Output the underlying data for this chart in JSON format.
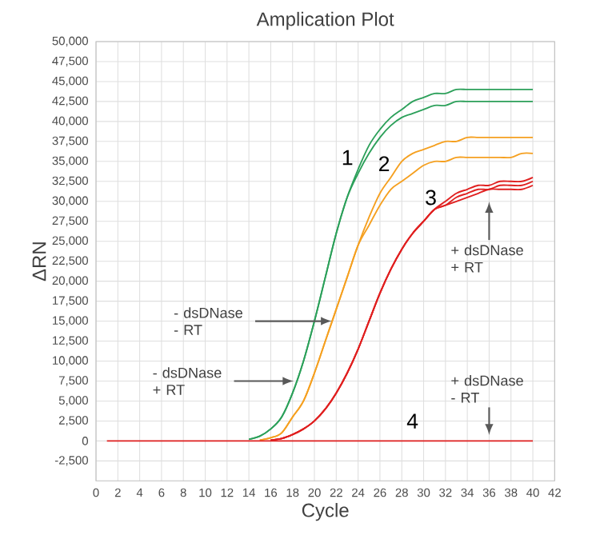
{
  "chart_data": {
    "type": "line",
    "title": "Amplication Plot",
    "xlabel": "Cycle",
    "ylabel": "ΔRN",
    "x": [
      1,
      2,
      3,
      4,
      5,
      6,
      7,
      8,
      9,
      10,
      11,
      12,
      13,
      14,
      15,
      16,
      17,
      18,
      19,
      20,
      21,
      22,
      23,
      24,
      25,
      26,
      27,
      28,
      29,
      30,
      31,
      32,
      33,
      34,
      35,
      36,
      37,
      38,
      39,
      40
    ],
    "series": [
      {
        "color": "#2ca05a",
        "values": [
          null,
          null,
          null,
          null,
          null,
          null,
          null,
          null,
          null,
          null,
          null,
          null,
          null,
          200,
          600,
          1500,
          3000,
          6000,
          10000,
          15000,
          20500,
          26000,
          30500,
          34000,
          37000,
          39000,
          40500,
          41500,
          42500,
          43000,
          43500,
          43500,
          44000,
          44000,
          44000,
          44000,
          44000,
          44000,
          44000,
          44000
        ]
      },
      {
        "color": "#2ca05a",
        "values": [
          null,
          null,
          null,
          null,
          null,
          null,
          null,
          null,
          null,
          null,
          null,
          null,
          null,
          200,
          600,
          1500,
          3000,
          6000,
          10000,
          15000,
          20500,
          26000,
          30500,
          33500,
          36000,
          38000,
          39500,
          40500,
          41000,
          41500,
          42000,
          42000,
          42500,
          42500,
          42500,
          42500,
          42500,
          42500,
          42500,
          42500
        ]
      },
      {
        "color": "#f5a020",
        "values": [
          null,
          null,
          null,
          null,
          null,
          null,
          null,
          null,
          null,
          null,
          null,
          null,
          null,
          null,
          100,
          400,
          1000,
          3000,
          5000,
          8500,
          12500,
          16500,
          20500,
          24500,
          28000,
          31000,
          33000,
          35000,
          36000,
          36500,
          37000,
          37500,
          37500,
          38000,
          38000,
          38000,
          38000,
          38000,
          38000,
          38000
        ]
      },
      {
        "color": "#f5a020",
        "values": [
          null,
          null,
          null,
          null,
          null,
          null,
          null,
          null,
          null,
          null,
          null,
          null,
          null,
          null,
          100,
          400,
          1000,
          3000,
          5000,
          8500,
          12500,
          16500,
          20500,
          24500,
          27000,
          29500,
          31500,
          32500,
          33500,
          34500,
          35000,
          35000,
          35500,
          35500,
          35500,
          35500,
          35500,
          35500,
          36000,
          36000
        ]
      },
      {
        "color": "#e02020",
        "values": [
          null,
          null,
          null,
          null,
          null,
          null,
          null,
          null,
          null,
          null,
          null,
          null,
          null,
          null,
          null,
          100,
          300,
          800,
          1500,
          2500,
          4000,
          6000,
          8500,
          11500,
          15000,
          18500,
          21500,
          24000,
          26000,
          27500,
          29000,
          30000,
          31000,
          31500,
          32000,
          32000,
          32500,
          32500,
          32500,
          33000
        ]
      },
      {
        "color": "#e02020",
        "values": [
          null,
          null,
          null,
          null,
          null,
          null,
          null,
          null,
          null,
          null,
          null,
          null,
          null,
          null,
          null,
          100,
          300,
          800,
          1500,
          2500,
          4000,
          6000,
          8500,
          11500,
          15000,
          18500,
          21500,
          24000,
          26000,
          27500,
          29000,
          29500,
          30500,
          31000,
          31500,
          31500,
          32000,
          32000,
          32000,
          32500
        ]
      },
      {
        "color": "#e02020",
        "values": [
          null,
          null,
          null,
          null,
          null,
          null,
          null,
          null,
          null,
          null,
          null,
          null,
          null,
          null,
          null,
          100,
          300,
          800,
          1500,
          2500,
          4000,
          6000,
          8500,
          11500,
          15000,
          18500,
          21500,
          24000,
          26000,
          27500,
          29000,
          29500,
          30000,
          30500,
          31000,
          31500,
          31500,
          31500,
          31500,
          32000
        ]
      },
      {
        "color": "#e02020",
        "values": [
          0,
          0,
          0,
          0,
          0,
          0,
          0,
          0,
          0,
          0,
          0,
          0,
          0,
          0,
          0,
          0,
          0,
          0,
          0,
          0,
          0,
          0,
          0,
          0,
          0,
          0,
          0,
          0,
          0,
          0,
          0,
          0,
          0,
          0,
          0,
          0,
          0,
          0,
          0,
          0
        ]
      }
    ],
    "xlim": [
      0,
      42
    ],
    "xticks": [
      0,
      2,
      4,
      6,
      8,
      10,
      12,
      14,
      16,
      18,
      20,
      22,
      24,
      26,
      28,
      30,
      32,
      34,
      36,
      38,
      40,
      42
    ],
    "ylim": [
      -5000,
      50000
    ],
    "yticks": [
      {
        "value": -2500,
        "label": "-2,500"
      },
      0,
      {
        "value": 2500,
        "label": "2,500"
      },
      {
        "value": 5000,
        "label": "5,000"
      },
      {
        "value": 7500,
        "label": "7,500"
      },
      {
        "value": 10000,
        "label": "10,000"
      },
      {
        "value": 12500,
        "label": "12,500"
      },
      {
        "value": 15000,
        "label": "15,000"
      },
      {
        "value": 17500,
        "label": "17,500"
      },
      {
        "value": 20000,
        "label": "20,000"
      },
      {
        "value": 22500,
        "label": "22,500"
      },
      {
        "value": 25000,
        "label": "25,000"
      },
      {
        "value": 27500,
        "label": "27,500"
      },
      {
        "value": 30000,
        "label": "30,000"
      },
      {
        "value": 32500,
        "label": "32,500"
      },
      {
        "value": 35000,
        "label": "35,000"
      },
      {
        "value": 37500,
        "label": "37,500"
      },
      {
        "value": 40000,
        "label": "40,000"
      },
      {
        "value": 42500,
        "label": "42,500"
      },
      {
        "value": 45000,
        "label": "45,000"
      },
      {
        "value": 47500,
        "label": "47,500"
      },
      {
        "value": 50000,
        "label": "50,000"
      }
    ],
    "grid": true,
    "marker": "none",
    "line_style": "solid",
    "annotations": [
      "1",
      "2",
      "3",
      "4",
      {
        "text": "- dsDNase - RT",
        "x": 22,
        "y": 15000
      },
      {
        "text": "- dsDNase + RT",
        "x": 18.5,
        "y": 7500
      },
      {
        "text": "+ dsDNase + RT",
        "x": 36,
        "y": 30500
      },
      {
        "text": "+ dsDNase - RT",
        "x": 36,
        "y": 200
      }
    ]
  }
}
